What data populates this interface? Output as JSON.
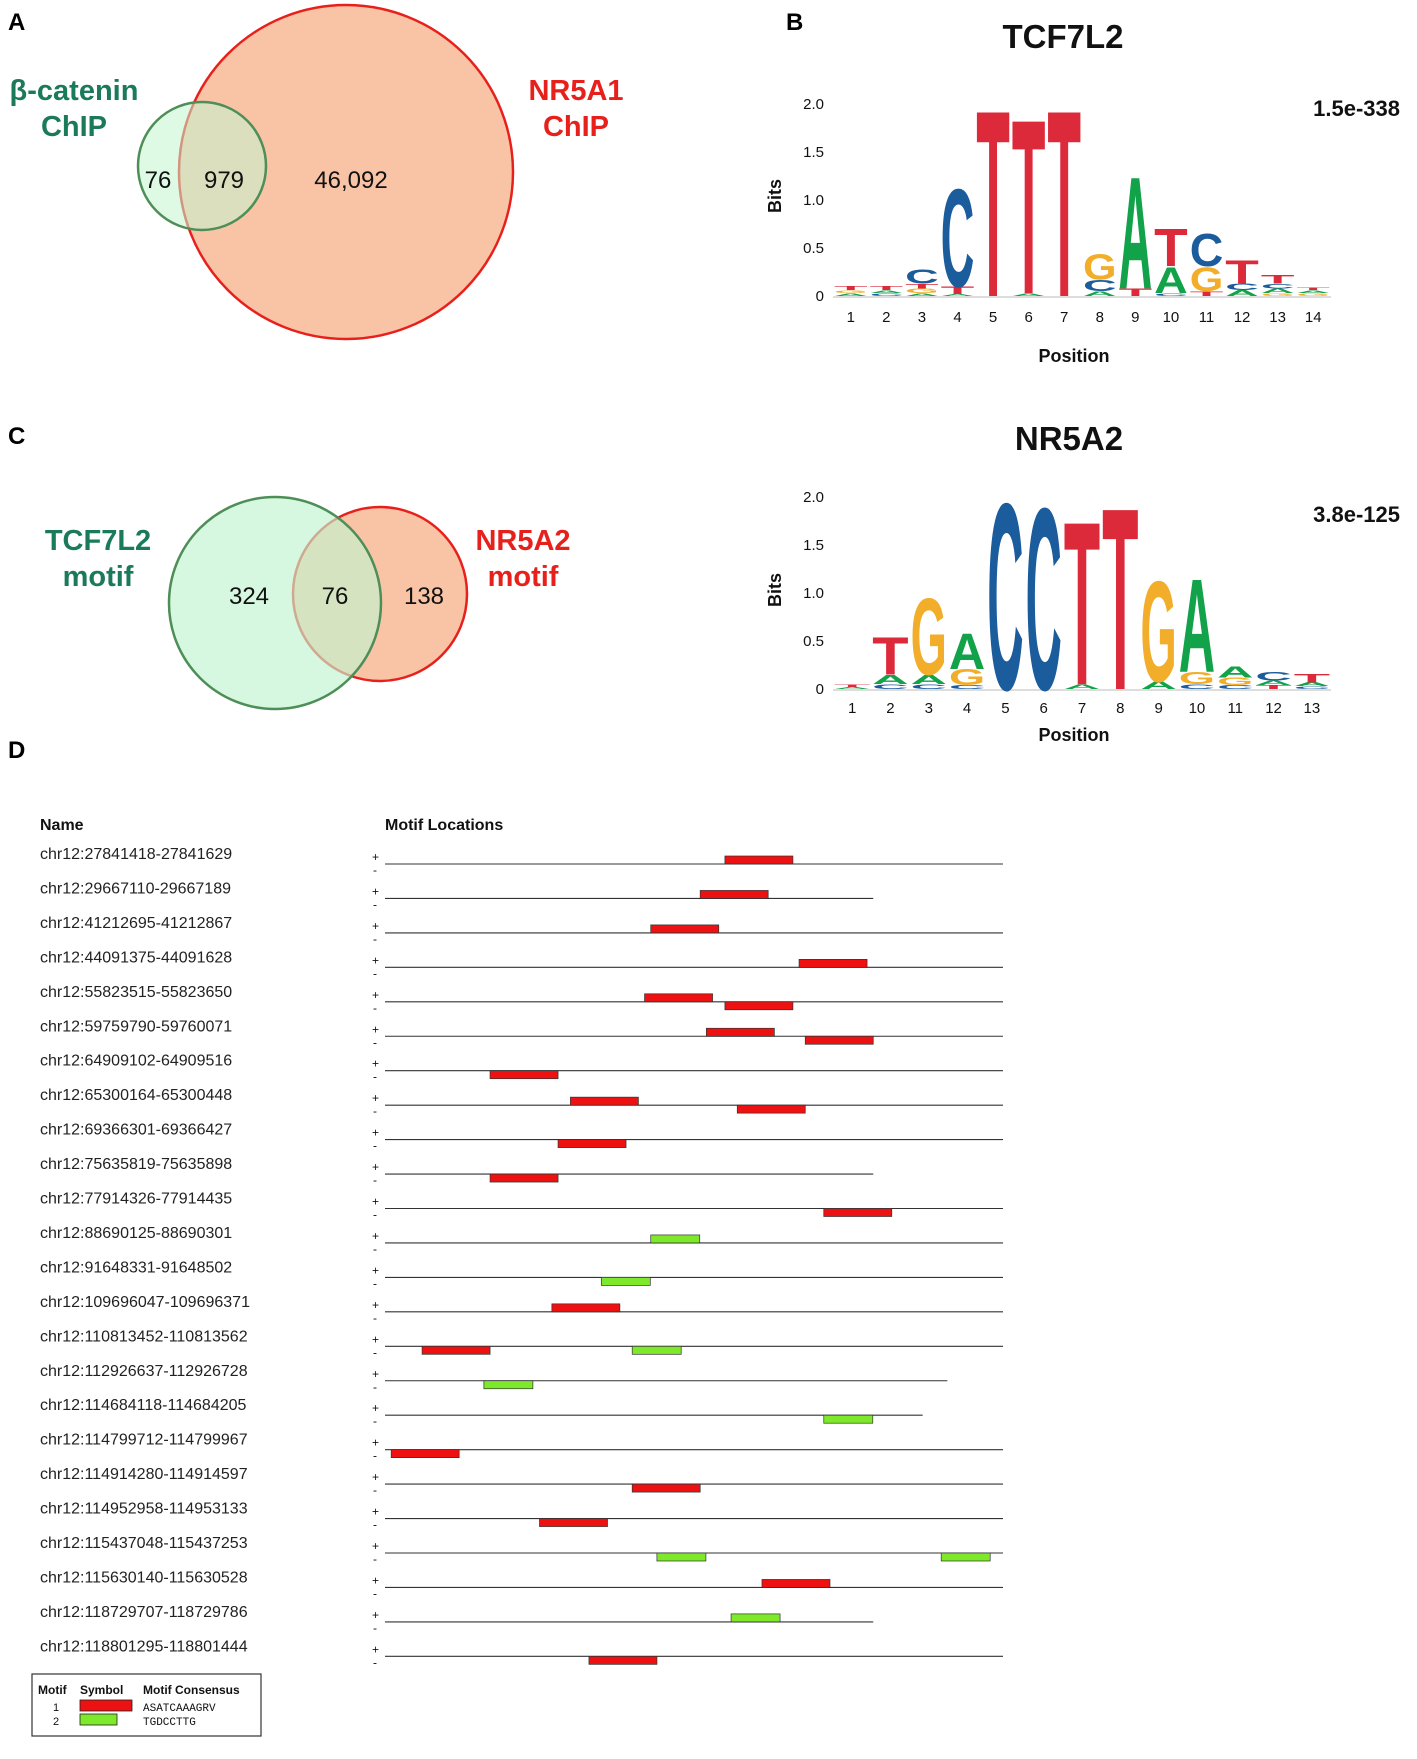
{
  "panels": {
    "a": "A",
    "b": "B",
    "c": "C",
    "d": "D"
  },
  "colors": {
    "green_text": "#1a7a5a",
    "red_text": "#e8201c",
    "green_fill": "#c2f5cf",
    "green_stroke": "#4e8e57",
    "salmon_fill": "#f9c4a6",
    "red_stroke": "#e8201c",
    "overlap_fill": "#cce7b9",
    "motif1": "#ee1111",
    "motif2": "#7ee82a",
    "base_A": "#12a24a",
    "base_C": "#1a5c9c",
    "base_G": "#f2ad2a",
    "base_T": "#dd2a3a"
  },
  "venn_a": {
    "left_label_line1": "β-catenin",
    "left_label_line2": "ChIP",
    "right_label_line1": "NR5A1",
    "right_label_line2": "ChIP",
    "left_only": "76",
    "overlap": "979",
    "right_only": "46,092"
  },
  "venn_c": {
    "left_label_line1": "TCF7L2",
    "left_label_line2": "motif",
    "right_label_line1": "NR5A2",
    "right_label_line2": "motif",
    "left_only": "324",
    "overlap": "76",
    "right_only": "138"
  },
  "logos": [
    {
      "title": "TCF7L2",
      "evalue": "1.5e-338",
      "ylabel": "Bits",
      "xlabel": "Position",
      "yticks": [
        "2.0",
        "1.5",
        "1.0",
        "0.5",
        "0"
      ],
      "positions": [
        "1",
        "2",
        "3",
        "4",
        "5",
        "6",
        "7",
        "8",
        "9",
        "10",
        "11",
        "12",
        "13",
        "14"
      ],
      "columns": [
        [
          [
            "T",
            0.04
          ],
          [
            "A",
            0.03
          ],
          [
            "G",
            0.03
          ]
        ],
        [
          [
            "T",
            0.04
          ],
          [
            "C",
            0.03
          ],
          [
            "A",
            0.03
          ]
        ],
        [
          [
            "C",
            0.15
          ],
          [
            "G",
            0.05
          ],
          [
            "T",
            0.05
          ],
          [
            "A",
            0.03
          ]
        ],
        [
          [
            "C",
            1.05
          ],
          [
            "T",
            0.08
          ],
          [
            "A",
            0.02
          ]
        ],
        [
          [
            "T",
            2.0
          ]
        ],
        [
          [
            "T",
            1.87
          ],
          [
            "A",
            0.03
          ]
        ],
        [
          [
            "T",
            2.0
          ]
        ],
        [
          [
            "G",
            0.27
          ],
          [
            "C",
            0.12
          ],
          [
            "A",
            0.05
          ]
        ],
        [
          [
            "A",
            1.2
          ],
          [
            "T",
            0.08
          ]
        ],
        [
          [
            "T",
            0.4
          ],
          [
            "A",
            0.28
          ],
          [
            "C",
            0.03
          ]
        ],
        [
          [
            "C",
            0.35
          ],
          [
            "G",
            0.26
          ],
          [
            "T",
            0.05
          ]
        ],
        [
          [
            "T",
            0.25
          ],
          [
            "C",
            0.07
          ],
          [
            "A",
            0.06
          ]
        ],
        [
          [
            "T",
            0.09
          ],
          [
            "A",
            0.05
          ],
          [
            "C",
            0.05
          ],
          [
            "G",
            0.03
          ]
        ],
        [
          [
            "G",
            0.03
          ],
          [
            "A",
            0.03
          ],
          [
            "T",
            0.03
          ]
        ]
      ]
    },
    {
      "title": "NR5A2",
      "evalue": "3.8e-125",
      "ylabel": "Bits",
      "xlabel": "Position",
      "yticks": [
        "2.0",
        "1.5",
        "1.0",
        "0.5",
        "0"
      ],
      "positions": [
        "1",
        "2",
        "3",
        "4",
        "5",
        "6",
        "7",
        "8",
        "9",
        "10",
        "11",
        "12",
        "13"
      ],
      "columns": [
        [
          [
            "T",
            0.03
          ],
          [
            "A",
            0.02
          ]
        ],
        [
          [
            "T",
            0.4
          ],
          [
            "A",
            0.1
          ],
          [
            "C",
            0.05
          ]
        ],
        [
          [
            "G",
            0.82
          ],
          [
            "A",
            0.1
          ],
          [
            "C",
            0.05
          ]
        ],
        [
          [
            "A",
            0.38
          ],
          [
            "G",
            0.17
          ],
          [
            "C",
            0.04
          ]
        ],
        [
          [
            "C",
            2.0
          ]
        ],
        [
          [
            "C",
            1.95
          ]
        ],
        [
          [
            "T",
            1.75
          ],
          [
            "A",
            0.05
          ]
        ],
        [
          [
            "T",
            1.95
          ]
        ],
        [
          [
            "G",
            1.08
          ],
          [
            "A",
            0.08
          ]
        ],
        [
          [
            "A",
            1.0
          ],
          [
            "G",
            0.13
          ],
          [
            "C",
            0.05
          ]
        ],
        [
          [
            "A",
            0.12
          ],
          [
            "G",
            0.08
          ],
          [
            "C",
            0.04
          ]
        ],
        [
          [
            "C",
            0.09
          ],
          [
            "A",
            0.05
          ],
          [
            "T",
            0.04
          ]
        ],
        [
          [
            "T",
            0.09
          ],
          [
            "A",
            0.04
          ],
          [
            "C",
            0.03
          ]
        ]
      ]
    }
  ],
  "motif_table": {
    "header_name": "Name",
    "header_locations": "Motif Locations",
    "strand_plus": "+",
    "strand_minus": "-",
    "rows": [
      {
        "name": "chr12:27841418-27841629",
        "length": 1.0,
        "motifs": [
          {
            "type": 1,
            "start": 0.55,
            "strand": "+"
          }
        ]
      },
      {
        "name": "chr12:29667110-29667189",
        "length": 0.79,
        "motifs": [
          {
            "type": 1,
            "start": 0.51,
            "strand": "+"
          }
        ]
      },
      {
        "name": "chr12:41212695-41212867",
        "length": 1.0,
        "motifs": [
          {
            "type": 1,
            "start": 0.43,
            "strand": "+"
          }
        ]
      },
      {
        "name": "chr12:44091375-44091628",
        "length": 1.0,
        "motifs": [
          {
            "type": 1,
            "start": 0.67,
            "strand": "+"
          }
        ]
      },
      {
        "name": "chr12:55823515-55823650",
        "length": 1.0,
        "motifs": [
          {
            "type": 1,
            "start": 0.42,
            "strand": "+"
          },
          {
            "type": 1,
            "start": 0.55,
            "strand": "-"
          }
        ]
      },
      {
        "name": "chr12:59759790-59760071",
        "length": 1.0,
        "motifs": [
          {
            "type": 1,
            "start": 0.52,
            "strand": "+"
          },
          {
            "type": 1,
            "start": 0.68,
            "strand": "-"
          }
        ]
      },
      {
        "name": "chr12:64909102-64909516",
        "length": 1.0,
        "motifs": [
          {
            "type": 1,
            "start": 0.17,
            "strand": "-"
          }
        ]
      },
      {
        "name": "chr12:65300164-65300448",
        "length": 1.0,
        "motifs": [
          {
            "type": 1,
            "start": 0.3,
            "strand": "+"
          },
          {
            "type": 1,
            "start": 0.57,
            "strand": "-"
          }
        ]
      },
      {
        "name": "chr12:69366301-69366427",
        "length": 1.0,
        "motifs": [
          {
            "type": 1,
            "start": 0.28,
            "strand": "-"
          }
        ]
      },
      {
        "name": "chr12:75635819-75635898",
        "length": 0.79,
        "motifs": [
          {
            "type": 1,
            "start": 0.17,
            "strand": "-"
          }
        ]
      },
      {
        "name": "chr12:77914326-77914435",
        "length": 1.0,
        "motifs": [
          {
            "type": 1,
            "start": 0.71,
            "strand": "-"
          }
        ]
      },
      {
        "name": "chr12:88690125-88690301",
        "length": 1.0,
        "motifs": [
          {
            "type": 2,
            "start": 0.43,
            "strand": "+"
          }
        ]
      },
      {
        "name": "chr12:91648331-91648502",
        "length": 1.0,
        "motifs": [
          {
            "type": 2,
            "start": 0.35,
            "strand": "-"
          }
        ]
      },
      {
        "name": "chr12:109696047-109696371",
        "length": 1.0,
        "motifs": [
          {
            "type": 1,
            "start": 0.27,
            "strand": "+"
          }
        ]
      },
      {
        "name": "chr12:110813452-110813562",
        "length": 1.0,
        "motifs": [
          {
            "type": 1,
            "start": 0.06,
            "strand": "-"
          },
          {
            "type": 2,
            "start": 0.4,
            "strand": "-"
          }
        ]
      },
      {
        "name": "chr12:112926637-112926728",
        "length": 0.91,
        "motifs": [
          {
            "type": 2,
            "start": 0.16,
            "strand": "-"
          }
        ]
      },
      {
        "name": "chr12:114684118-114684205",
        "length": 0.87,
        "motifs": [
          {
            "type": 2,
            "start": 0.71,
            "strand": "-"
          }
        ]
      },
      {
        "name": "chr12:114799712-114799967",
        "length": 1.0,
        "motifs": [
          {
            "type": 1,
            "start": 0.01,
            "strand": "-"
          }
        ]
      },
      {
        "name": "chr12:114914280-114914597",
        "length": 1.0,
        "motifs": [
          {
            "type": 1,
            "start": 0.4,
            "strand": "-"
          }
        ]
      },
      {
        "name": "chr12:114952958-114953133",
        "length": 1.0,
        "motifs": [
          {
            "type": 1,
            "start": 0.25,
            "strand": "-"
          }
        ]
      },
      {
        "name": "chr12:115437048-115437253",
        "length": 1.0,
        "motifs": [
          {
            "type": 2,
            "start": 0.44,
            "strand": "-"
          },
          {
            "type": 2,
            "start": 0.9,
            "strand": "-"
          }
        ]
      },
      {
        "name": "chr12:115630140-115630528",
        "length": 1.0,
        "motifs": [
          {
            "type": 1,
            "start": 0.61,
            "strand": "+"
          }
        ]
      },
      {
        "name": "chr12:118729707-118729786",
        "length": 0.79,
        "motifs": [
          {
            "type": 2,
            "start": 0.56,
            "strand": "+"
          }
        ]
      },
      {
        "name": "chr12:118801295-118801444",
        "length": 1.0,
        "motifs": [
          {
            "type": 1,
            "start": 0.33,
            "strand": "-"
          }
        ]
      }
    ]
  },
  "legend": {
    "col_motif": "Motif",
    "col_symbol": "Symbol",
    "col_consensus": "Motif Consensus",
    "entries": [
      {
        "id": "1",
        "consensus": "ASATCAAAGRV"
      },
      {
        "id": "2",
        "consensus": "TGDCCTTG"
      }
    ]
  }
}
